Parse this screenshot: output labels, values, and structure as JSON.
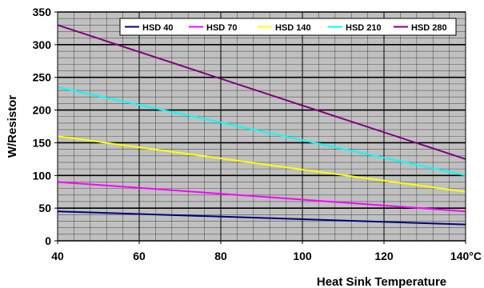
{
  "chart_data": {
    "type": "line",
    "xlabel": "Heat Sink Temperature",
    "ylabel": "W/Resistor",
    "xlim": [
      40,
      140
    ],
    "ylim": [
      0,
      350
    ],
    "x_ticks": [
      40,
      60,
      80,
      100,
      120,
      140
    ],
    "x_tick_labels": [
      "40",
      "60",
      "80",
      "100",
      "120",
      "140°C"
    ],
    "y_ticks": [
      0,
      50,
      100,
      150,
      200,
      250,
      300,
      350
    ],
    "y_tick_labels": [
      "0",
      "50",
      "100",
      "150",
      "200",
      "250",
      "300",
      "350"
    ],
    "grid": true,
    "legend_position": "top-right",
    "plot_background": "#c0c0c0",
    "series": [
      {
        "name": "HSD 40",
        "color": "#000080",
        "x": [
          40,
          140
        ],
        "y": [
          45,
          25
        ]
      },
      {
        "name": "HSD 70",
        "color": "#ff00ff",
        "x": [
          40,
          140
        ],
        "y": [
          90,
          45
        ]
      },
      {
        "name": "HSD 140",
        "color": "#ffff00",
        "x": [
          40,
          140
        ],
        "y": [
          160,
          75
        ]
      },
      {
        "name": "HSD 210",
        "color": "#00ffff",
        "x": [
          40,
          140
        ],
        "y": [
          235,
          100
        ]
      },
      {
        "name": "HSD 280",
        "color": "#800080",
        "x": [
          40,
          140
        ],
        "y": [
          330,
          125
        ]
      }
    ]
  }
}
